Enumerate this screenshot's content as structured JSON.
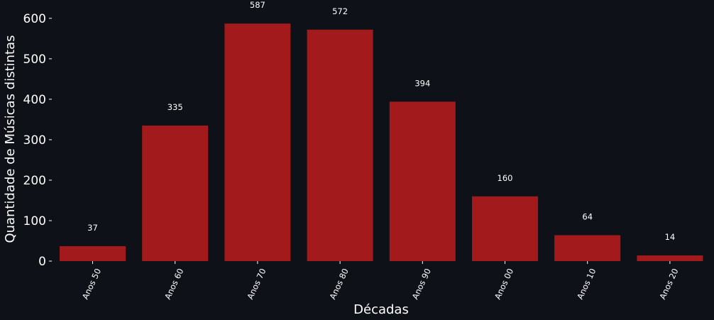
{
  "chart_data": {
    "type": "bar",
    "categories": [
      "Anos 50",
      "Anos 60",
      "Anos 70",
      "Anos 80",
      "Anos 90",
      "Anos 00",
      "Anos 10",
      "Anos 20"
    ],
    "values": [
      37,
      335,
      587,
      572,
      394,
      160,
      64,
      14
    ],
    "data_labels": [
      "37",
      "335",
      "587",
      "572",
      "394",
      "160",
      "64",
      "14"
    ],
    "xlabel": "Décadas",
    "ylabel": "Quantidade de Músicas distintas",
    "ylim": [
      0,
      640
    ],
    "yticks": [
      0,
      100,
      200,
      300,
      400,
      500,
      600
    ],
    "grid": false,
    "bar_color": "#a31a1c",
    "background_color": "#0e1117",
    "text_color": "#ffffff"
  }
}
